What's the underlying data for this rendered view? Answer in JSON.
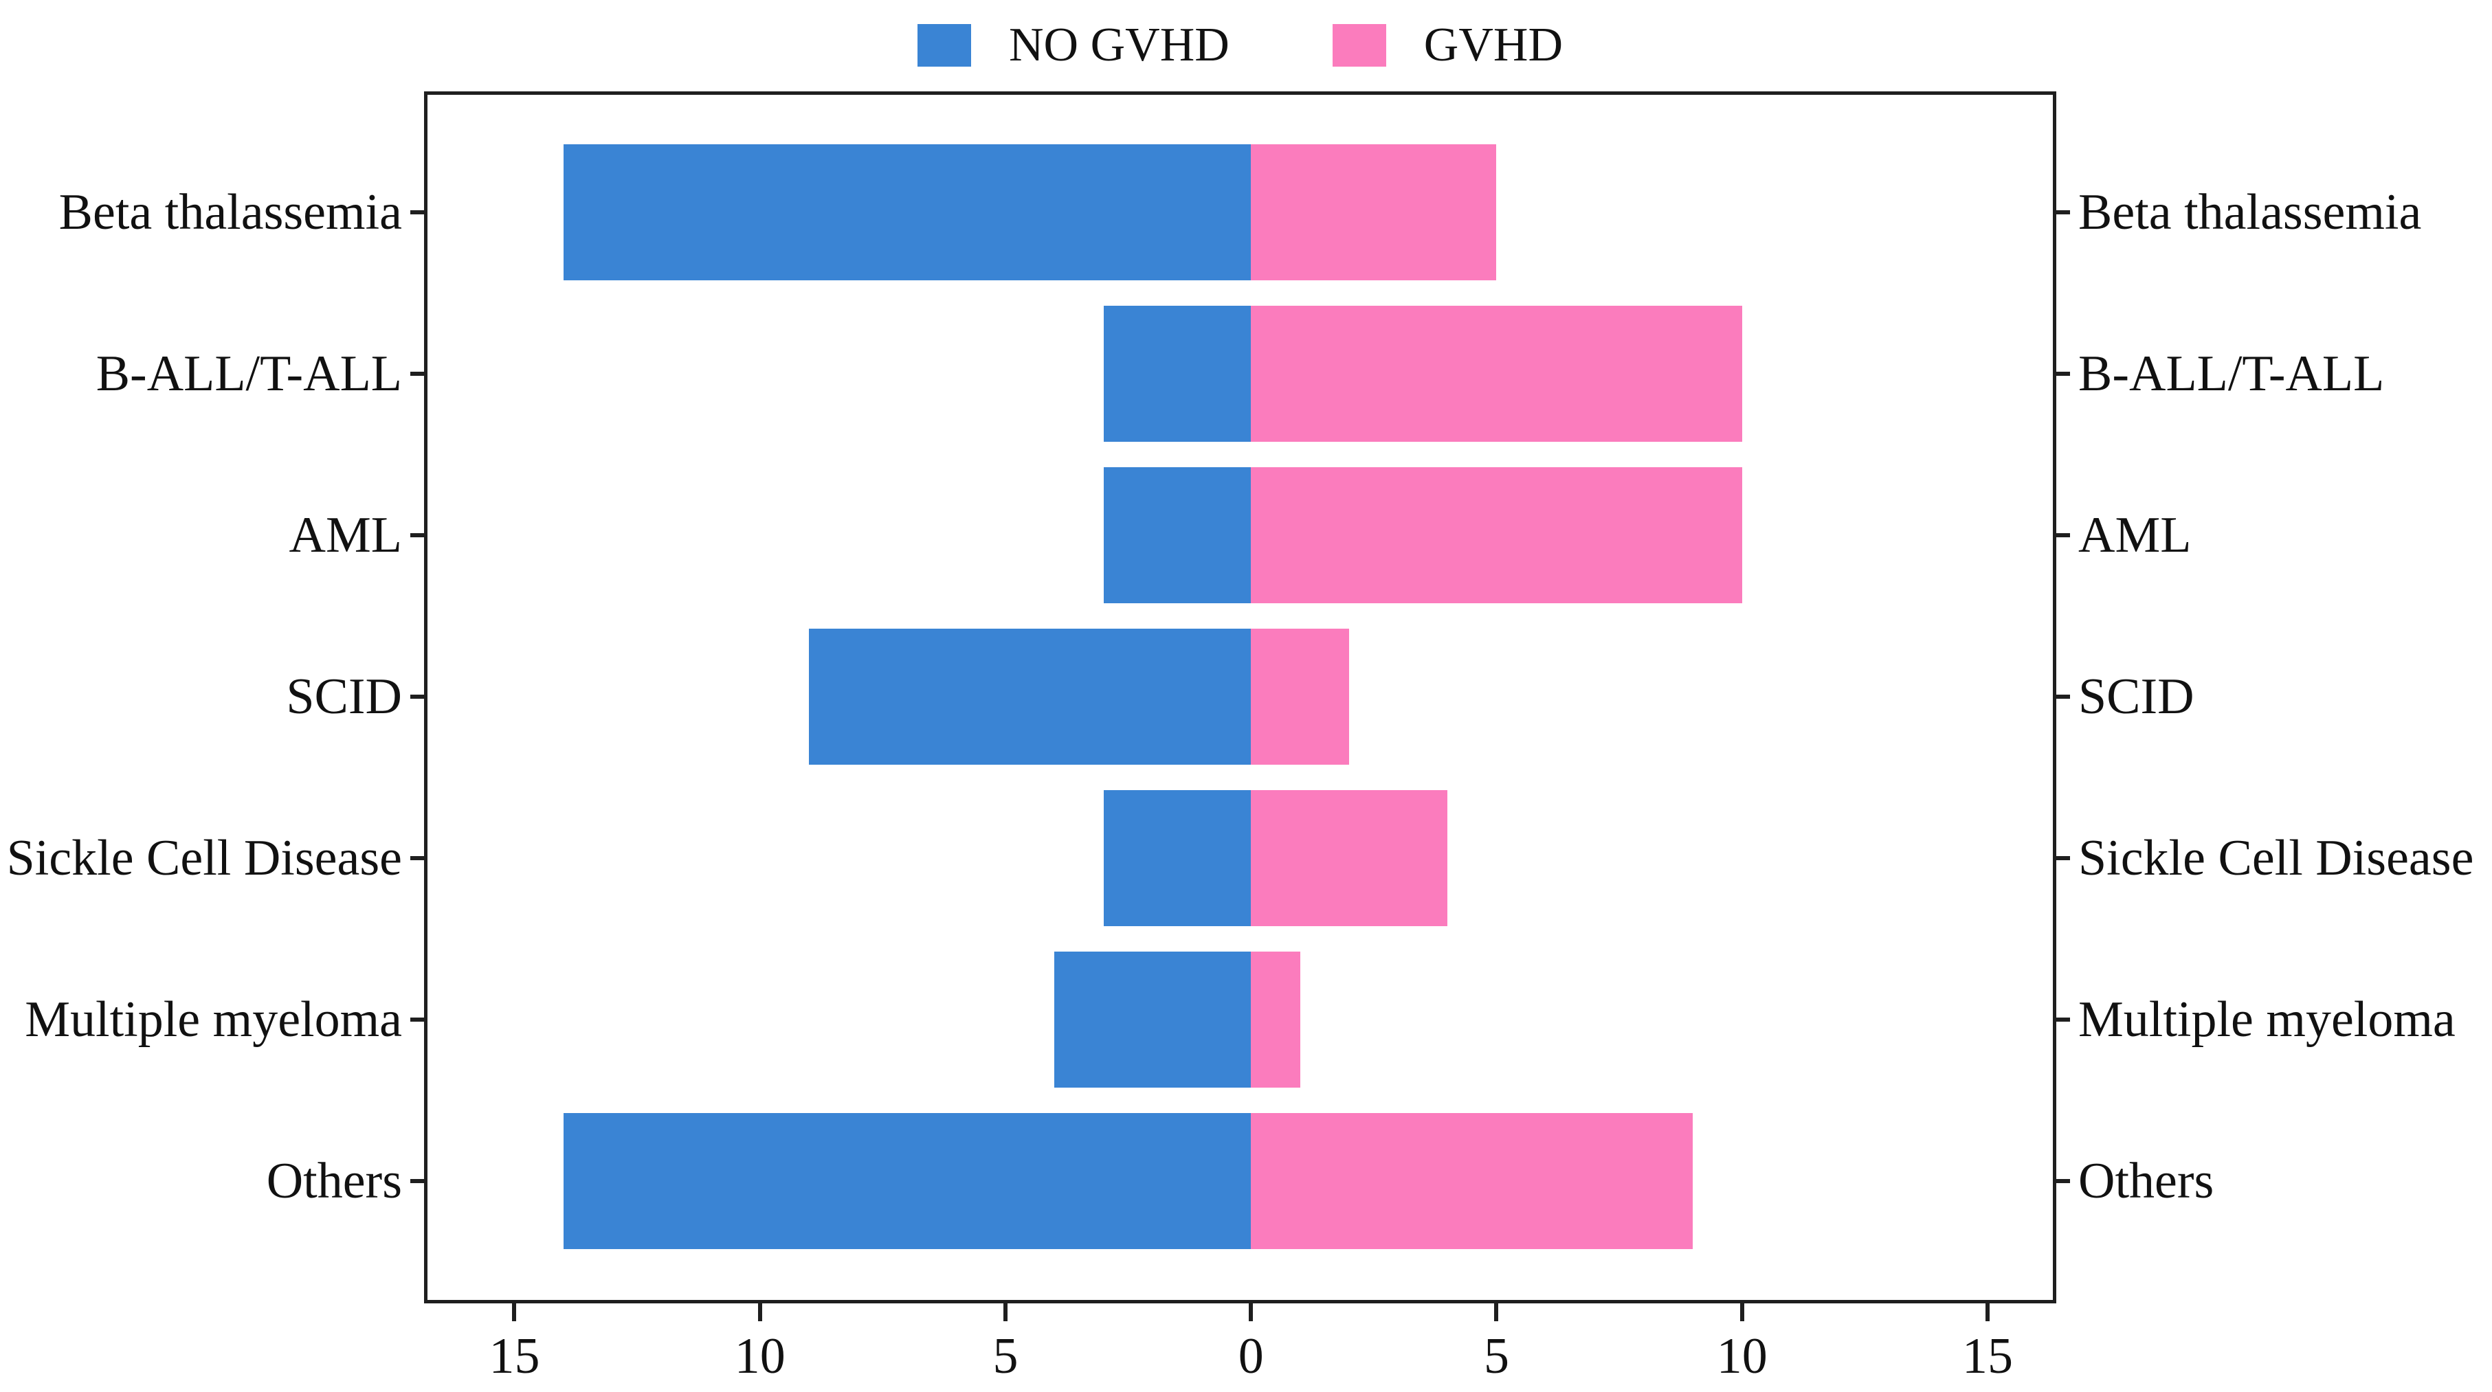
{
  "legend": {
    "position": "top",
    "items": [
      {
        "label": "NO GVHD",
        "color": "#3A84D4"
      },
      {
        "label": "GVHD",
        "color": "#FB7CBD"
      }
    ]
  },
  "chart_data": {
    "type": "bar",
    "variant": "diverging-horizontal",
    "title": "",
    "xlabel": "",
    "ylabel": "",
    "categories": [
      "Beta thalassemia",
      "B-ALL/T-ALL",
      "AML",
      "SCID",
      "Sickle Cell Disease",
      "Multiple myeloma",
      "Others"
    ],
    "series": [
      {
        "name": "NO GVHD",
        "direction": "left",
        "color": "#3A84D4",
        "values": [
          14,
          3,
          3,
          9,
          3,
          4,
          14
        ]
      },
      {
        "name": "GVHD",
        "direction": "right",
        "color": "#FB7CBD",
        "values": [
          5,
          10,
          10,
          2,
          4,
          1,
          9
        ]
      }
    ],
    "x_axis": {
      "tick_labels": [
        "15",
        "10",
        "5",
        "0",
        "5",
        "10",
        "15"
      ],
      "tick_values": [
        -15,
        -10,
        -5,
        0,
        5,
        10,
        15
      ],
      "range": [
        -16.84,
        16.4
      ]
    },
    "category_labels_on_both_sides": true,
    "grid": false,
    "legend_position": "top",
    "axis_color": "#1f1f1f",
    "background": "#ffffff"
  }
}
